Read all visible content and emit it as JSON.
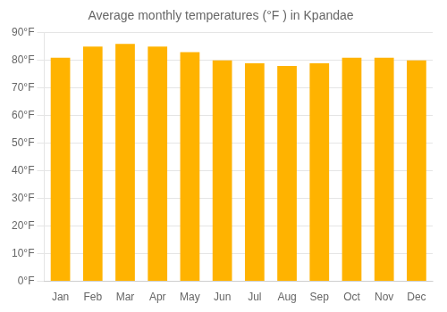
{
  "chart_data": {
    "type": "bar",
    "title": "Average monthly temperatures (°F ) in Kpandae",
    "categories": [
      "Jan",
      "Feb",
      "Mar",
      "Apr",
      "May",
      "Jun",
      "Jul",
      "Aug",
      "Sep",
      "Oct",
      "Nov",
      "Dec"
    ],
    "values": [
      81,
      85,
      86,
      85,
      83,
      80,
      79,
      78,
      79,
      81,
      81,
      80
    ],
    "color": "#FFB300",
    "ylim": [
      0,
      90
    ],
    "yticks": [
      {
        "value": 0,
        "label": "0°F"
      },
      {
        "value": 10,
        "label": "10°F"
      },
      {
        "value": 20,
        "label": "20°F"
      },
      {
        "value": 30,
        "label": "30°F"
      },
      {
        "value": 40,
        "label": "40°F"
      },
      {
        "value": 50,
        "label": "50°F"
      },
      {
        "value": 60,
        "label": "60°F"
      },
      {
        "value": 70,
        "label": "70°F"
      },
      {
        "value": 80,
        "label": "80°F"
      },
      {
        "value": 90,
        "label": "90°F"
      }
    ],
    "grid": true
  }
}
